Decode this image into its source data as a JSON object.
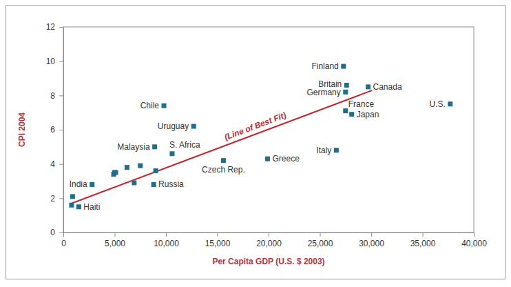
{
  "chart_data": {
    "type": "scatter",
    "x_label": "Per Capita GDP (U.S. $ 2003)",
    "y_label": "CPI 2004",
    "x": [
      27300,
      27600,
      27500,
      29700,
      37700,
      27500,
      28100,
      9800,
      12700,
      8900,
      10600,
      26600,
      19900,
      15600,
      8800,
      2800,
      1500,
      900,
      800,
      5000,
      4900,
      6200,
      7500,
      6900,
      9000,
      5100
    ],
    "values": [
      9.7,
      8.6,
      8.2,
      8.5,
      7.5,
      7.1,
      6.9,
      7.4,
      6.2,
      5.0,
      4.6,
      4.8,
      4.3,
      4.2,
      2.8,
      2.8,
      1.5,
      2.1,
      1.6,
      3.5,
      3.4,
      3.8,
      3.9,
      2.9,
      3.6,
      3.5
    ],
    "point_labels": [
      "Finland",
      "Britain",
      "Germany",
      "Canada",
      "U.S.",
      "France",
      "Japan",
      "Chile",
      "Uruguay",
      "Malaysia",
      "S. Africa",
      "Italy",
      "Greece",
      "Czech Rep.",
      "Russia",
      "India",
      "Haiti",
      null,
      null,
      null,
      null,
      null,
      null,
      null,
      null,
      null
    ],
    "color": "#1f6e8c",
    "marker": "square",
    "trend_line": {
      "label": "(Line of Best Fit)",
      "x": [
        800,
        30100
      ],
      "y": [
        1.7,
        8.3
      ],
      "color": "#c0272d",
      "line_style": "solid"
    },
    "xlim": [
      0,
      40000
    ],
    "xticks": [
      0,
      {
        "value": 5000,
        "label": "5,000"
      },
      {
        "value": 10000,
        "label": "10,000"
      },
      {
        "value": 15000,
        "label": "15,000"
      },
      {
        "value": 20000,
        "label": "20,000"
      },
      {
        "value": 25000,
        "label": "25,000"
      },
      {
        "value": 30000,
        "label": "30,000"
      },
      {
        "value": 35000,
        "label": "35,000"
      },
      {
        "value": 40000,
        "label": "40,000"
      }
    ],
    "ylim": [
      0,
      12
    ],
    "yticks": [
      0,
      2,
      4,
      6,
      8,
      10,
      12
    ],
    "grid": false
  }
}
